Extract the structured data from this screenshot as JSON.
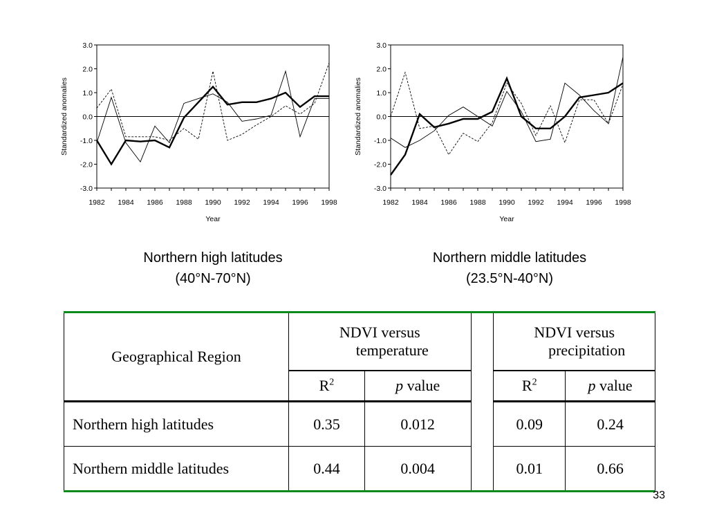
{
  "chart_data": [
    {
      "type": "line",
      "xlabel": "Year",
      "ylabel": "Standardized anomalies",
      "ylim": [
        -3.0,
        3.0
      ],
      "yticks": [
        "-3.0",
        "-2.0",
        "-1.0",
        "0.0",
        "1.0",
        "2.0",
        "3.0"
      ],
      "xticks": [
        "1982",
        "1984",
        "1986",
        "1988",
        "1990",
        "1992",
        "1994",
        "1996",
        "1998"
      ],
      "x": [
        1982,
        1983,
        1984,
        1985,
        1986,
        1987,
        1988,
        1989,
        1990,
        1991,
        1992,
        1993,
        1994,
        1995,
        1996,
        1997,
        1998
      ],
      "grid": false,
      "legend": "none",
      "series": [
        {
          "style": "thick",
          "values": [
            -1.0,
            -2.0,
            -1.0,
            -1.05,
            -1.0,
            -1.3,
            -0.05,
            0.6,
            1.25,
            0.5,
            0.6,
            0.6,
            0.75,
            1.0,
            0.4,
            0.85,
            0.85
          ]
        },
        {
          "style": "thin",
          "values": [
            -1.1,
            0.8,
            -1.1,
            -1.9,
            -0.4,
            -1.1,
            0.55,
            0.75,
            0.95,
            0.6,
            -0.2,
            -0.1,
            0.05,
            1.9,
            -0.85,
            0.75,
            0.75
          ]
        },
        {
          "style": "dashed",
          "values": [
            0.35,
            1.15,
            -0.85,
            -0.85,
            -0.85,
            -1.0,
            -0.5,
            -0.95,
            1.9,
            -1.0,
            -0.75,
            -0.35,
            0.0,
            0.45,
            0.1,
            0.55,
            2.25
          ]
        }
      ]
    },
    {
      "type": "line",
      "xlabel": "Year",
      "ylabel": "Standardized anomalies",
      "ylim": [
        -3.0,
        3.0
      ],
      "yticks": [
        "-3.0",
        "-2.0",
        "-1.0",
        "0.0",
        "1.0",
        "2.0",
        "3.0"
      ],
      "xticks": [
        "1982",
        "1984",
        "1986",
        "1988",
        "1990",
        "1992",
        "1994",
        "1996",
        "1998"
      ],
      "x": [
        1982,
        1983,
        1984,
        1985,
        1986,
        1987,
        1988,
        1989,
        1990,
        1991,
        1992,
        1993,
        1994,
        1995,
        1996,
        1997,
        1998
      ],
      "grid": false,
      "legend": "none",
      "series": [
        {
          "style": "thick",
          "values": [
            -2.45,
            -1.6,
            0.1,
            -0.45,
            -0.3,
            -0.1,
            -0.1,
            0.2,
            1.6,
            0.0,
            -0.5,
            -0.5,
            0.0,
            0.8,
            0.9,
            1.0,
            1.4
          ]
        },
        {
          "style": "thin",
          "values": [
            -0.9,
            -1.3,
            -1.0,
            -0.6,
            0.05,
            0.4,
            0.0,
            -0.4,
            1.05,
            0.2,
            -1.05,
            -0.95,
            1.4,
            0.9,
            0.25,
            -0.3,
            2.5
          ]
        },
        {
          "style": "dashed",
          "values": [
            0.0,
            1.85,
            -0.5,
            -0.4,
            -1.6,
            -0.7,
            -1.05,
            -0.25,
            1.4,
            0.55,
            -0.8,
            0.45,
            -1.1,
            0.7,
            0.7,
            -0.3,
            1.35
          ]
        }
      ]
    }
  ],
  "captions": [
    {
      "line1": "Northern high latitudes",
      "line2": "(40°N-70°N)"
    },
    {
      "line1": "Northern middle latitudes",
      "line2": "(23.5°N-40°N)"
    }
  ],
  "table": {
    "region_header": "Geographical Region",
    "group_temperature": {
      "line1": "NDVI versus",
      "line2": "temperature"
    },
    "group_precipitation": {
      "line1": "NDVI versus",
      "line2": "precipitation"
    },
    "r2_label": "R",
    "r2_superscript": "2",
    "p_label_italic": "p",
    "p_label_rest": " value",
    "rows": [
      {
        "region": "Northern high latitudes",
        "temp_r2": "0.35",
        "temp_p": "0.012",
        "precip_r2": "0.09",
        "precip_p": "0.24"
      },
      {
        "region": "Northern middle latitudes",
        "temp_r2": "0.44",
        "temp_p": "0.004",
        "precip_r2": "0.01",
        "precip_p": "0.66"
      }
    ]
  },
  "slide_number": "33"
}
